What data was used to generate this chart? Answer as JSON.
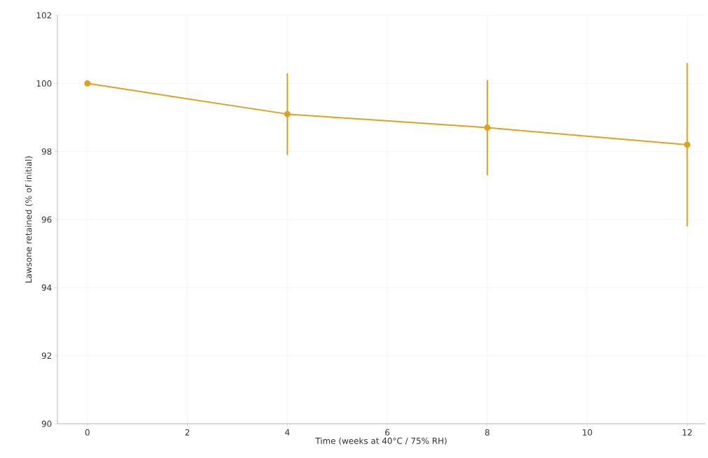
{
  "chart_data": {
    "type": "line",
    "xlabel": "Time (weeks at 40°C / 75% RH)",
    "ylabel": "Lawsone retained (% of initial)",
    "x": [
      0,
      4,
      8,
      12
    ],
    "series": [
      {
        "color": "#e0a21c",
        "values": [
          100,
          99.1,
          98.7,
          98.2
        ],
        "errors": [
          null,
          1.2,
          1.4,
          2.4
        ]
      }
    ],
    "xlim": [
      -0.6,
      12.36
    ],
    "ylim": [
      90,
      102
    ],
    "xticks": [
      0,
      2,
      4,
      6,
      8,
      10,
      12
    ],
    "yticks": [
      90,
      92,
      94,
      96,
      98,
      100,
      102
    ],
    "grid": true,
    "marker": "circle",
    "line_style": "solid"
  }
}
